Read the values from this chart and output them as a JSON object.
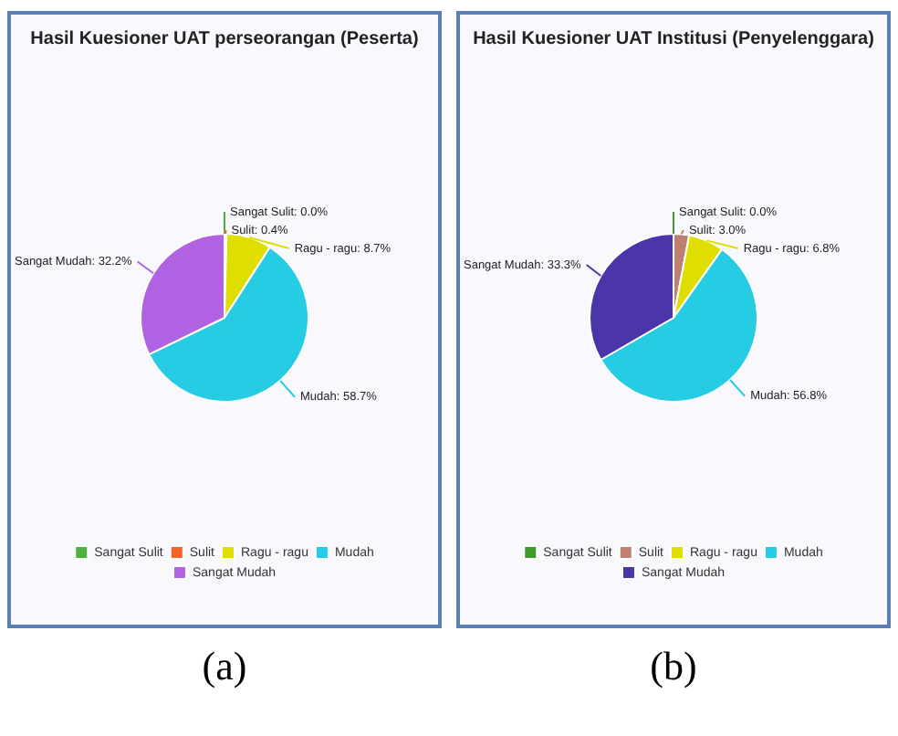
{
  "chart_data": [
    {
      "type": "pie",
      "title": "Hasil Kuesioner UAT perseorangan (Peserta)",
      "categories": [
        "Sangat Sulit",
        "Sulit",
        "Ragu - ragu",
        "Mudah",
        "Sangat Mudah"
      ],
      "values": [
        0.0,
        0.4,
        8.7,
        58.7,
        32.2
      ],
      "colors": [
        "#4db33d",
        "#f4622a",
        "#dede00",
        "#26cce4",
        "#b062e3"
      ],
      "value_labels": [
        "Sangat Sulit: 0.0%",
        "Sulit: 0.4%",
        "Ragu - ragu: 8.7%",
        "Mudah: 58.7%",
        "Sangat Mudah: 32.2%"
      ],
      "legend": "bottom",
      "annotations": [
        "(a)"
      ]
    },
    {
      "type": "pie",
      "title": "Hasil Kuesioner UAT Institusi (Penyelenggara)",
      "categories": [
        "Sangat Sulit",
        "Sulit",
        "Ragu - ragu",
        "Mudah",
        "Sangat Mudah"
      ],
      "values": [
        0.0,
        3.0,
        6.8,
        56.8,
        33.3
      ],
      "colors": [
        "#3f9a2a",
        "#c08070",
        "#dede00",
        "#26cce4",
        "#4b35a8"
      ],
      "value_labels": [
        "Sangat Sulit: 0.0%",
        "Sulit: 3.0%",
        "Ragu - ragu: 6.8%",
        "Mudah: 56.8%",
        "Sangat Mudah: 33.3%"
      ],
      "legend": "bottom",
      "annotations": [
        "(b)"
      ]
    }
  ]
}
